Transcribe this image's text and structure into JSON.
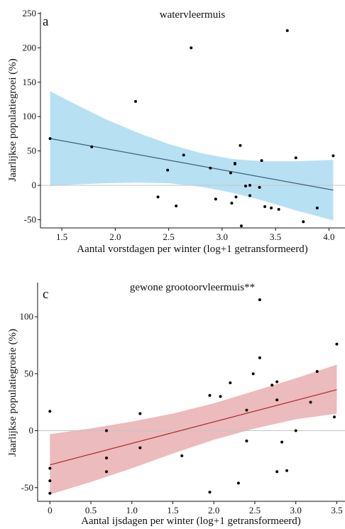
{
  "chart_data": [
    {
      "type": "scatter",
      "panel_label": "a",
      "title": "watervleermuis",
      "xlabel": "Aantal vorstdagen per winter (log+1 getransformeerd)",
      "ylabel": "Jaarlijkse populatiegroei (%)",
      "xlim": [
        1.3,
        4.15
      ],
      "ylim": [
        -62,
        252
      ],
      "xticks": [
        "1.5",
        "2.0",
        "2.5",
        "3.0",
        "3.5",
        "4.0"
      ],
      "yticks": [
        "-50",
        "0",
        "50",
        "100",
        "150",
        "200",
        "250"
      ],
      "grid": false,
      "reference_line_y": 0,
      "colors": {
        "band": "#b7e1f3",
        "line": "#3e5f78",
        "points": "#000000"
      },
      "points": [
        [
          1.39,
          68
        ],
        [
          1.78,
          56
        ],
        [
          2.19,
          122
        ],
        [
          2.4,
          -17
        ],
        [
          2.49,
          22
        ],
        [
          2.57,
          -30
        ],
        [
          2.64,
          44
        ],
        [
          2.71,
          200
        ],
        [
          2.89,
          25
        ],
        [
          2.94,
          -20
        ],
        [
          3.08,
          18
        ],
        [
          3.09,
          -26
        ],
        [
          3.12,
          31
        ],
        [
          3.12,
          32
        ],
        [
          3.13,
          -17
        ],
        [
          3.17,
          58
        ],
        [
          3.18,
          -59
        ],
        [
          3.22,
          -1
        ],
        [
          3.26,
          0
        ],
        [
          3.26,
          -15
        ],
        [
          3.35,
          -3
        ],
        [
          3.37,
          36
        ],
        [
          3.4,
          -31
        ],
        [
          3.46,
          -33
        ],
        [
          3.53,
          -35
        ],
        [
          3.61,
          225
        ],
        [
          3.69,
          40
        ],
        [
          3.76,
          -53
        ],
        [
          3.89,
          -33
        ],
        [
          4.04,
          43
        ]
      ],
      "fit": {
        "x": [
          1.39,
          4.04
        ],
        "y": [
          68,
          -7
        ]
      },
      "band": {
        "x": [
          1.39,
          1.6,
          1.9,
          2.2,
          2.5,
          2.8,
          3.1,
          3.4,
          3.7,
          4.04
        ],
        "upper": [
          137,
          120,
          97,
          77,
          60,
          47,
          38,
          35,
          35,
          37
        ],
        "lower": [
          -1,
          1,
          3,
          4,
          3,
          -2,
          -11,
          -23,
          -37,
          -51
        ]
      }
    },
    {
      "type": "scatter",
      "panel_label": "c",
      "title": "gewone grootoorvleermuis**",
      "xlabel": "Aantal ijsdagen per winter (log+1 getransformeerd)",
      "ylabel": "Jaarlijkse populatiegroeie (%)",
      "xlim": [
        -0.15,
        3.6
      ],
      "ylim": [
        -62,
        130
      ],
      "xticks": [
        "0",
        "0.5",
        "1.0",
        "1.5",
        "2.0",
        "2.5",
        "3.0",
        "3.5"
      ],
      "yticks": [
        "-50",
        "0",
        "50",
        "100"
      ],
      "grid": false,
      "reference_line_y": 0,
      "colors": {
        "band": "#ebbbbd",
        "line": "#b0272d",
        "points": "#000000"
      },
      "points": [
        [
          0.0,
          17
        ],
        [
          0.0,
          -33
        ],
        [
          0.0,
          -44
        ],
        [
          0.0,
          -55
        ],
        [
          0.69,
          0
        ],
        [
          0.69,
          -24
        ],
        [
          0.69,
          -36
        ],
        [
          1.1,
          15
        ],
        [
          1.1,
          -15
        ],
        [
          1.61,
          -22
        ],
        [
          1.95,
          31
        ],
        [
          1.95,
          -54
        ],
        [
          2.08,
          30
        ],
        [
          2.2,
          42
        ],
        [
          2.3,
          -46
        ],
        [
          2.4,
          18
        ],
        [
          2.4,
          -9
        ],
        [
          2.48,
          50
        ],
        [
          2.56,
          115
        ],
        [
          2.56,
          64
        ],
        [
          2.71,
          40
        ],
        [
          2.77,
          43
        ],
        [
          2.77,
          27
        ],
        [
          2.77,
          -36
        ],
        [
          2.83,
          -10
        ],
        [
          2.89,
          -35
        ],
        [
          3.0,
          0
        ],
        [
          3.18,
          25
        ],
        [
          3.26,
          52
        ],
        [
          3.47,
          12
        ],
        [
          3.5,
          76
        ]
      ],
      "fit": {
        "x": [
          0.0,
          3.5
        ],
        "y": [
          -30,
          36
        ]
      },
      "band": {
        "x": [
          0.0,
          0.5,
          1.0,
          1.5,
          2.0,
          2.5,
          3.0,
          3.5
        ],
        "upper": [
          -3,
          2,
          8,
          15,
          24,
          35,
          46,
          58
        ],
        "lower": [
          -56,
          -45,
          -33,
          -20,
          -8,
          2,
          10,
          15
        ]
      }
    }
  ]
}
